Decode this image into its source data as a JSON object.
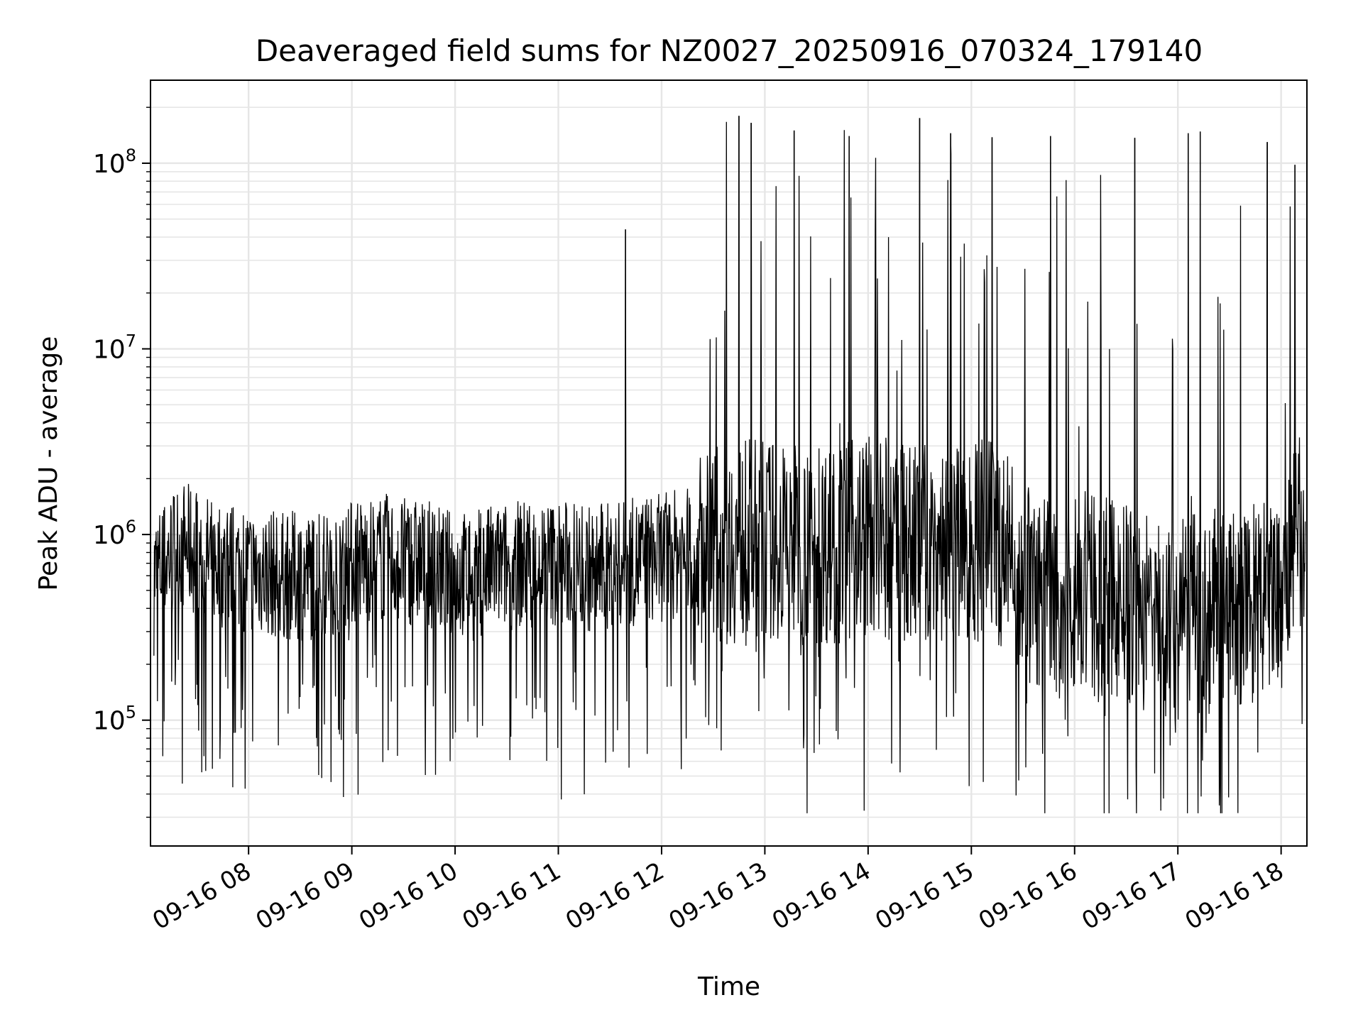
{
  "chart_data": {
    "type": "line",
    "title": "Deaveraged field sums for NZ0027_20250916_070324_179140",
    "xlabel": "Time",
    "ylabel": "Peak ADU - average",
    "yscale": "log",
    "xlim": [
      "2025-09-16 07:03",
      "2025-09-16 18:15"
    ],
    "ylim": [
      21000,
      280000000
    ],
    "grid": true,
    "line_color": "#000000",
    "xticks": [
      {
        "time": "2025-09-16 08:00",
        "label": "09-16 08"
      },
      {
        "time": "2025-09-16 09:00",
        "label": "09-16 09"
      },
      {
        "time": "2025-09-16 10:00",
        "label": "09-16 10"
      },
      {
        "time": "2025-09-16 11:00",
        "label": "09-16 11"
      },
      {
        "time": "2025-09-16 12:00",
        "label": "09-16 12"
      },
      {
        "time": "2025-09-16 13:00",
        "label": "09-16 13"
      },
      {
        "time": "2025-09-16 14:00",
        "label": "09-16 14"
      },
      {
        "time": "2025-09-16 15:00",
        "label": "09-16 15"
      },
      {
        "time": "2025-09-16 16:00",
        "label": "09-16 16"
      },
      {
        "time": "2025-09-16 17:00",
        "label": "09-16 17"
      },
      {
        "time": "2025-09-16 18:00",
        "label": "09-16 18"
      }
    ],
    "yticks": [
      {
        "value": 100000,
        "base": "10",
        "exp": "5"
      },
      {
        "value": 1000000,
        "base": "10",
        "exp": "6"
      },
      {
        "value": 10000000,
        "base": "10",
        "exp": "7"
      },
      {
        "value": 100000000,
        "base": "10",
        "exp": "8"
      }
    ],
    "series": [
      {
        "x": [
          "2025-09-16 07:05",
          "2025-09-16 07:20",
          "2025-09-16 07:40",
          "2025-09-16 08:00",
          "2025-09-16 08:20",
          "2025-09-16 08:40",
          "2025-09-16 09:00",
          "2025-09-16 09:20",
          "2025-09-16 09:40",
          "2025-09-16 10:00",
          "2025-09-16 10:20",
          "2025-09-16 10:40",
          "2025-09-16 11:00",
          "2025-09-16 11:20",
          "2025-09-16 11:40",
          "2025-09-16 12:00",
          "2025-09-16 12:20",
          "2025-09-16 12:40",
          "2025-09-16 13:00",
          "2025-09-16 13:20",
          "2025-09-16 13:40",
          "2025-09-16 14:00",
          "2025-09-16 14:20",
          "2025-09-16 14:40",
          "2025-09-16 15:00",
          "2025-09-16 15:20",
          "2025-09-16 15:40",
          "2025-09-16 16:00",
          "2025-09-16 16:20",
          "2025-09-16 16:40",
          "2025-09-16 17:00",
          "2025-09-16 17:20",
          "2025-09-16 17:40",
          "2025-09-16 18:00",
          "2025-09-16 18:14"
        ],
        "y": [
          600000,
          900000,
          700000,
          650000,
          600000,
          600000,
          700000,
          750000,
          700000,
          600000,
          650000,
          700000,
          700000,
          650000,
          700000,
          750000,
          850000,
          900000,
          950000,
          900000,
          900000,
          1000000,
          900000,
          900000,
          950000,
          850000,
          450000,
          500000,
          450000,
          400000,
          350000,
          400000,
          400000,
          500000,
          1200000
        ]
      }
    ],
    "spikes": [
      {
        "time": "2025-09-16 11:39",
        "value": 44000000
      },
      {
        "time": "2025-09-16 12:45",
        "value": 180000000
      },
      {
        "time": "2025-09-16 12:52",
        "value": 165000000
      },
      {
        "time": "2025-09-16 13:17",
        "value": 150000000
      },
      {
        "time": "2025-09-16 13:49",
        "value": 140000000
      },
      {
        "time": "2025-09-16 14:30",
        "value": 175000000
      },
      {
        "time": "2025-09-16 14:48",
        "value": 145000000
      },
      {
        "time": "2025-09-16 15:12",
        "value": 138000000
      },
      {
        "time": "2025-09-16 15:46",
        "value": 140000000
      },
      {
        "time": "2025-09-16 16:35",
        "value": 137000000
      },
      {
        "time": "2025-09-16 17:06",
        "value": 145000000
      },
      {
        "time": "2025-09-16 17:13",
        "value": 148000000
      },
      {
        "time": "2025-09-16 17:52",
        "value": 130000000
      },
      {
        "time": "2025-09-16 18:08",
        "value": 98000000
      }
    ]
  }
}
